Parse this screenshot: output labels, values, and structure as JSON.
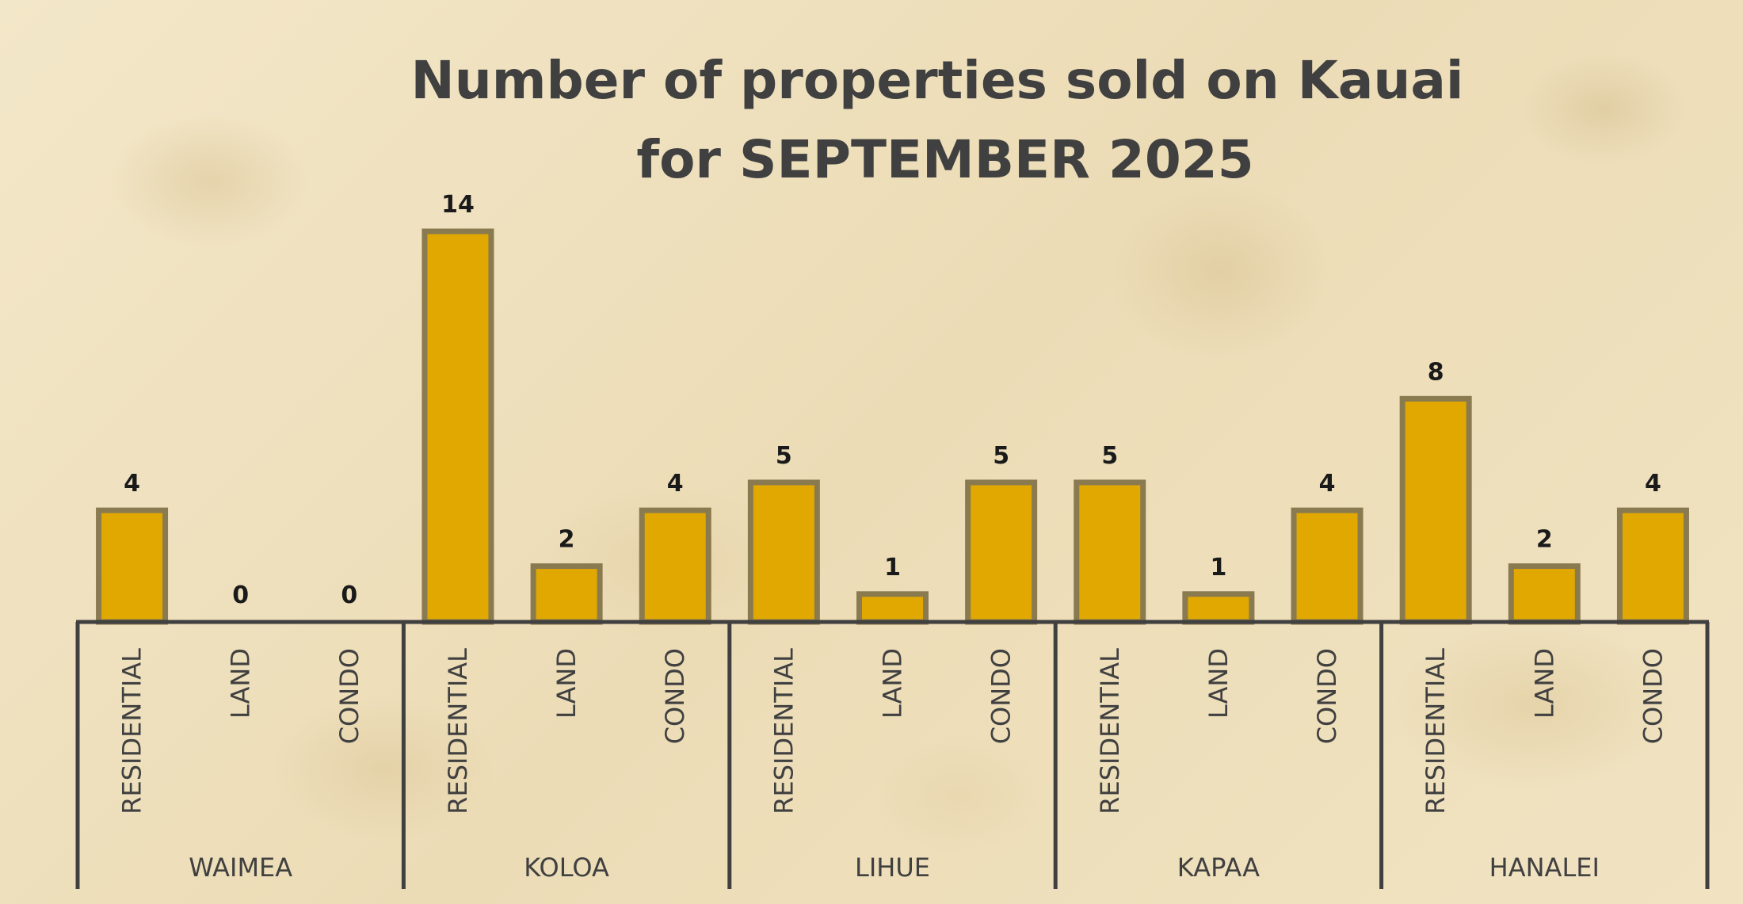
{
  "chart_data": {
    "type": "bar",
    "title": [
      "Number of properties sold on Kauai",
      "for  SEPTEMBER 2025"
    ],
    "groups": [
      {
        "name": "WAIMEA",
        "categories": [
          "RESIDENTIAL",
          "LAND",
          "CONDO"
        ],
        "values": [
          4,
          0,
          0
        ]
      },
      {
        "name": "KOLOA",
        "categories": [
          "RESIDENTIAL",
          "LAND",
          "CONDO"
        ],
        "values": [
          14,
          2,
          4
        ]
      },
      {
        "name": "LIHUE",
        "categories": [
          "RESIDENTIAL",
          "LAND",
          "CONDO"
        ],
        "values": [
          5,
          1,
          5
        ]
      },
      {
        "name": "KAPAA",
        "categories": [
          "RESIDENTIAL",
          "LAND",
          "CONDO"
        ],
        "values": [
          5,
          1,
          4
        ]
      },
      {
        "name": "HANALEI",
        "categories": [
          "RESIDENTIAL",
          "LAND",
          "CONDO"
        ],
        "values": [
          8,
          2,
          4
        ]
      }
    ],
    "ylim": [
      0,
      14
    ],
    "data_labels": true,
    "grid": false,
    "legend": "none",
    "colors": {
      "bar_fill": "#e0a800",
      "bar_outline": "#8a7a50",
      "axis": "#404040",
      "title": "#404040"
    }
  }
}
